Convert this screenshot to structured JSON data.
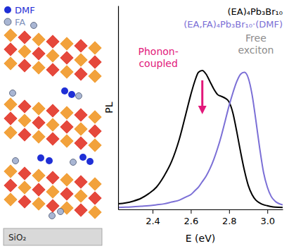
{
  "chart_data": {
    "type": "line",
    "x_label": "E (eV)",
    "y_label": "PL",
    "xlim": [
      2.22,
      3.08
    ],
    "xticks": [
      2.4,
      2.6,
      2.8,
      {
        "value": 3,
        "label": "3.0"
      }
    ],
    "ylim": [
      0,
      1.1
    ],
    "tick_labels": "x",
    "grid": false,
    "legend": "upper right",
    "x": [
      2.22,
      2.26,
      2.3,
      2.34,
      2.38,
      2.42,
      2.46,
      2.5,
      2.54,
      2.58,
      2.6,
      2.62,
      2.64,
      2.66,
      2.68,
      2.7,
      2.72,
      2.74,
      2.76,
      2.78,
      2.8,
      2.82,
      2.84,
      2.86,
      2.88,
      2.9,
      2.92,
      2.94,
      2.96,
      2.98,
      3.0,
      3.02,
      3.04,
      3.08
    ],
    "series": [
      {
        "name": "(EA)₄Pb₃Br₁₀",
        "color": "#000000",
        "values": [
          0.03,
          0.035,
          0.045,
          0.06,
          0.085,
          0.12,
          0.18,
          0.26,
          0.38,
          0.54,
          0.62,
          0.69,
          0.74,
          0.75,
          0.73,
          0.69,
          0.65,
          0.62,
          0.61,
          0.6,
          0.58,
          0.52,
          0.42,
          0.31,
          0.21,
          0.13,
          0.08,
          0.05,
          0.035,
          0.025,
          0.02,
          0.015,
          0.012,
          0.01
        ]
      },
      {
        "name": "(EA,FA)₄Pb₃Br₁₀·(DMF)",
        "color": "#7b6fd6",
        "values": [
          0.01,
          0.012,
          0.014,
          0.017,
          0.02,
          0.025,
          0.03,
          0.04,
          0.05,
          0.07,
          0.08,
          0.1,
          0.12,
          0.15,
          0.18,
          0.22,
          0.27,
          0.33,
          0.4,
          0.48,
          0.56,
          0.63,
          0.69,
          0.73,
          0.74,
          0.71,
          0.62,
          0.48,
          0.33,
          0.2,
          0.12,
          0.07,
          0.045,
          0.025
        ]
      }
    ],
    "annotations": [
      {
        "text": "Phonon-coupled",
        "color": "#e2187a",
        "x": 2.43,
        "y": 0.77
      },
      {
        "text": "Free exciton",
        "color": "#8c8c8c",
        "x": 2.94,
        "y": 0.843
      }
    ]
  },
  "schematic": {
    "legend": [
      {
        "label": "DMF",
        "color": "#1f2fd6"
      },
      {
        "label": "FA",
        "color": "#a9b6d3"
      }
    ],
    "substrate": "SiO₂",
    "octahedron_colors": [
      "#f2a23c",
      "#e5483c"
    ]
  }
}
